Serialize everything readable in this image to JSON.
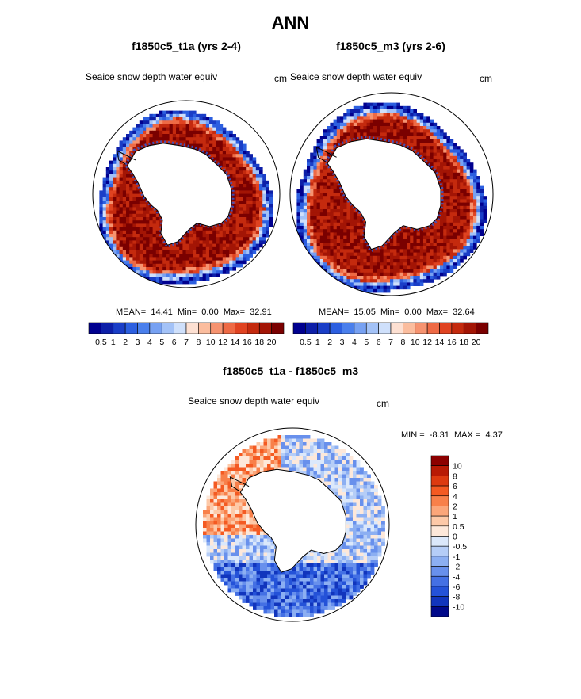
{
  "chart_data": [
    {
      "type": "heatmap",
      "projection": "south-polar-stereographic",
      "title": "f1850c5_t1a (yrs 2-4)",
      "variable": "Seaice snow depth water equiv",
      "units": "cm",
      "stats": {
        "mean_label": "MEAN=",
        "mean": "14.41",
        "min_label": "Min=",
        "min": "0.00",
        "max_label": "Max=",
        "max": "32.91"
      },
      "colorbar": {
        "levels": [
          "0.5",
          "1",
          "2",
          "3",
          "4",
          "5",
          "6",
          "7",
          "8",
          "10",
          "12",
          "14",
          "16",
          "18",
          "20"
        ],
        "colors": [
          "#00008f",
          "#0d1fa8",
          "#1a3ec7",
          "#2c5fe0",
          "#4a7fec",
          "#77a1f2",
          "#a3c2f7",
          "#cfe0fb",
          "#fde0d2",
          "#fbbd9e",
          "#f69370",
          "#ee6a45",
          "#e04321",
          "#c42a0e",
          "#a31505",
          "#7a0000"
        ]
      }
    },
    {
      "type": "heatmap",
      "projection": "south-polar-stereographic",
      "title": "f1850c5_m3 (yrs 2-6)",
      "variable": "Seaice snow depth water equiv",
      "units": "cm",
      "stats": {
        "mean_label": "MEAN=",
        "mean": "15.05",
        "min_label": "Min=",
        "min": "0.00",
        "max_label": "Max=",
        "max": "32.64"
      },
      "colorbar": {
        "levels": [
          "0.5",
          "1",
          "2",
          "3",
          "4",
          "5",
          "6",
          "7",
          "8",
          "10",
          "12",
          "14",
          "16",
          "18",
          "20"
        ],
        "colors": [
          "#00008f",
          "#0d1fa8",
          "#1a3ec7",
          "#2c5fe0",
          "#4a7fec",
          "#77a1f2",
          "#a3c2f7",
          "#cfe0fb",
          "#fde0d2",
          "#fbbd9e",
          "#f69370",
          "#ee6a45",
          "#e04321",
          "#c42a0e",
          "#a31505",
          "#7a0000"
        ]
      }
    },
    {
      "type": "heatmap",
      "projection": "south-polar-stereographic",
      "title": "f1850c5_t1a - f1850c5_m3",
      "variable": "Seaice snow depth water equiv",
      "units": "cm",
      "stats": {
        "min_label": "MIN =",
        "min": "-8.31",
        "max_label": "MAX =",
        "max": "4.37"
      },
      "colorbar": {
        "orientation": "vertical",
        "levels": [
          "10",
          "8",
          "6",
          "4",
          "2",
          "1",
          "0.5",
          "0",
          "-0.5",
          "-1",
          "-2",
          "-4",
          "-6",
          "-8",
          "-10"
        ],
        "colors": [
          "#8c0000",
          "#b81a05",
          "#dd3a10",
          "#f45a22",
          "#f8804a",
          "#fba67a",
          "#fdc9a8",
          "#fde8da",
          "#dbe8fb",
          "#b5cdf7",
          "#8caff2",
          "#6890ec",
          "#4470e4",
          "#2452d8",
          "#1135bd",
          "#00098a"
        ]
      }
    }
  ],
  "page": {
    "title": "ANN"
  }
}
